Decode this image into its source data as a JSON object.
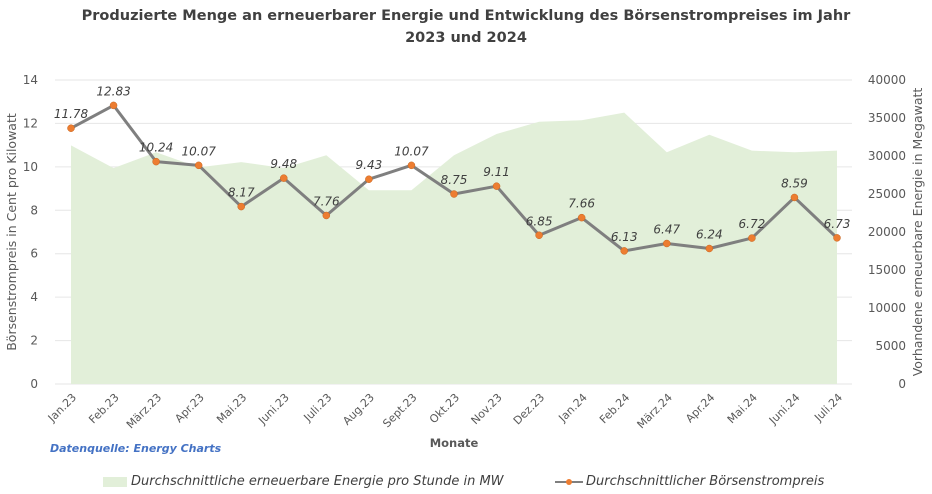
{
  "chart_data": {
    "type": "line",
    "title_line1": "Produzierte Menge an erneuerbarer Energie und Entwicklung des Börsenstrompreises im Jahr",
    "title_line2": "2023 und 2024",
    "xlabel": "Monate",
    "ylabel_left": "Börsenstrompreis in Cent pro Kilowatt",
    "ylabel_right": "Vorhandene erneuerbare Energie in Megawatt",
    "ylim_left": [
      0,
      14
    ],
    "ylim_right": [
      0,
      40000
    ],
    "yticks_left": [
      "0",
      "2",
      "4",
      "6",
      "8",
      "10",
      "12",
      "14"
    ],
    "yticks_right": [
      "0",
      "5000",
      "10000",
      "15000",
      "20000",
      "25000",
      "30000",
      "35000",
      "40000"
    ],
    "grid": true,
    "legend_position": "bottom",
    "categories": [
      "Jan.23",
      "Feb.23",
      "März.23",
      "Apr.23",
      "Mai.23",
      "Juni.23",
      "Juli.23",
      "Aug.23",
      "Sept.23",
      "Okt.23",
      "Nov.23",
      "Dez.23",
      "Jan.24",
      "Feb.24",
      "März.24",
      "Apr.24",
      "Mai.24",
      "Juni.24",
      "Juli.24"
    ],
    "series": [
      {
        "name": "Durchschnittliche erneuerbare Energie pro Stunde in MW",
        "type": "area",
        "axis": "right",
        "color": "#e2efd9",
        "values": [
          31400,
          28400,
          30500,
          28500,
          29200,
          28400,
          30100,
          25500,
          25500,
          30100,
          32900,
          34500,
          34700,
          35700,
          30500,
          32800,
          30700,
          30500,
          30700
        ]
      },
      {
        "name": "Durchschnittlicher Börsenstrompreis",
        "type": "line",
        "axis": "left",
        "color": "#7f7f7f",
        "marker_color": "#ed7d31",
        "values": [
          11.78,
          12.83,
          10.24,
          10.07,
          8.17,
          9.48,
          7.76,
          9.43,
          10.07,
          8.75,
          9.11,
          6.85,
          7.66,
          6.13,
          6.47,
          6.24,
          6.72,
          8.59,
          6.73
        ],
        "labels": [
          "11.78",
          "12.83",
          "10.24",
          "10.07",
          "8.17",
          "9.48",
          "7.76",
          "9.43",
          "10.07",
          "8.75",
          "9.11",
          "6.85",
          "7.66",
          "6.13",
          "6.47",
          "6.24",
          "6.72",
          "8.59",
          "6.73"
        ]
      }
    ]
  },
  "source": "Datenquelle: Energy Charts",
  "legend": {
    "area_label": "Durchschnittliche erneuerbare Energie pro Stunde in MW",
    "line_label": "Durchschnittlicher Börsenstrompreis"
  }
}
